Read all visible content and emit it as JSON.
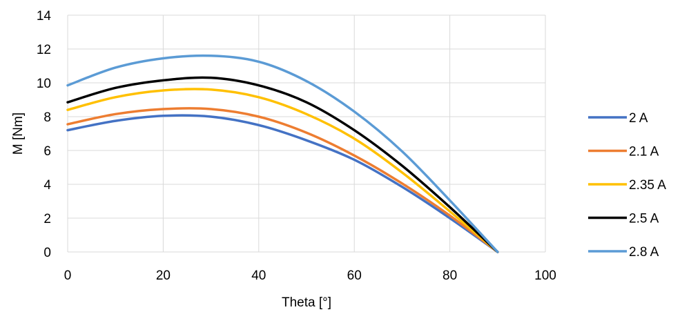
{
  "chart_data": {
    "type": "line",
    "title": "",
    "xlabel": "Theta [°]",
    "ylabel": "M [Nm]",
    "xlim": [
      0,
      100
    ],
    "ylim": [
      0,
      14
    ],
    "xticks": [
      0,
      20,
      40,
      60,
      80,
      100
    ],
    "yticks": [
      0,
      2,
      4,
      6,
      8,
      10,
      12,
      14
    ],
    "grid": true,
    "legend_position": "right",
    "x": [
      0,
      10,
      20,
      30,
      40,
      50,
      60,
      70,
      80,
      90
    ],
    "series": [
      {
        "name": "2 A",
        "color": "#4472C4",
        "values": [
          7.2,
          7.75,
          8.05,
          8.0,
          7.5,
          6.6,
          5.45,
          3.85,
          2.0,
          0
        ]
      },
      {
        "name": "2.1 A",
        "color": "#ED7D31",
        "values": [
          7.55,
          8.15,
          8.45,
          8.45,
          8.0,
          7.05,
          5.7,
          4.05,
          2.15,
          0
        ]
      },
      {
        "name": "2.35 A",
        "color": "#FFC000",
        "values": [
          8.4,
          9.15,
          9.55,
          9.6,
          9.15,
          8.15,
          6.7,
          4.7,
          2.4,
          0
        ]
      },
      {
        "name": "2.5 A",
        "color": "#000000",
        "values": [
          8.85,
          9.7,
          10.15,
          10.3,
          9.85,
          8.85,
          7.2,
          5.1,
          2.65,
          0
        ]
      },
      {
        "name": "2.8 A",
        "color": "#5B9BD5",
        "values": [
          9.85,
          10.9,
          11.45,
          11.6,
          11.25,
          10.1,
          8.3,
          5.95,
          3.05,
          0
        ]
      }
    ]
  }
}
